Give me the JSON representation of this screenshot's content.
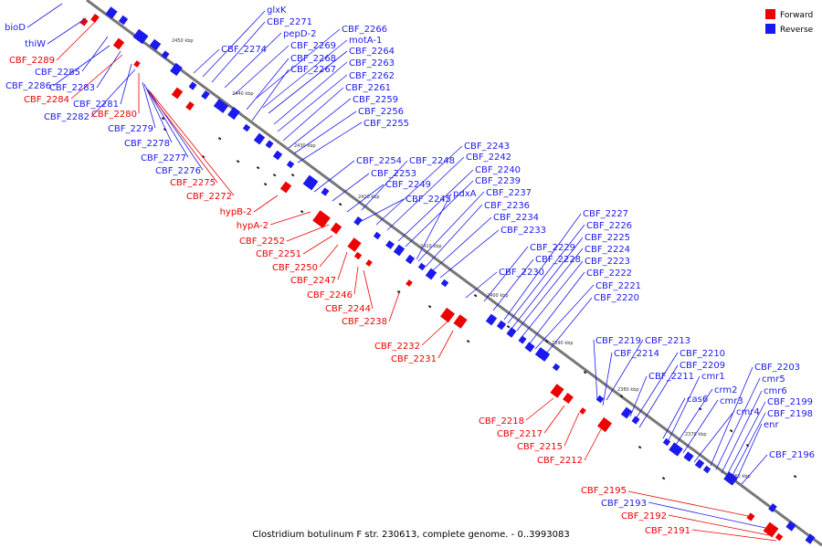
{
  "caption": "Clostridium botulinum F str. 230613, complete genome. - 0..3993083",
  "legend": [
    {
      "label": "Forward",
      "color": "#ee0000"
    },
    {
      "label": "Reverse",
      "color": "#1a1aee"
    }
  ],
  "colors": {
    "forward": "#ee0000",
    "reverse": "#1a1aee",
    "axis": "#777777"
  },
  "ticks": [
    "2450 kbp",
    "2440 kbp",
    "2430 kbp",
    "2420 kbp",
    "2410 kbp",
    "2400 kbp",
    "2390 kbp",
    "2380 kbp",
    "2370 kbp",
    "2360 kbp"
  ],
  "labels": [
    {
      "text": "bioD",
      "s": "r"
    },
    {
      "text": "thiW",
      "s": "r"
    },
    {
      "text": "CBF_2289",
      "s": "f"
    },
    {
      "text": "CBF_2285",
      "s": "r"
    },
    {
      "text": "CBF_2286",
      "s": "r"
    },
    {
      "text": "CBF_2283",
      "s": "r"
    },
    {
      "text": "CBF_2284",
      "s": "f"
    },
    {
      "text": "CBF_2281",
      "s": "r"
    },
    {
      "text": "CBF_2282",
      "s": "r"
    },
    {
      "text": "CBF_2280",
      "s": "f"
    },
    {
      "text": "CBF_2279",
      "s": "r"
    },
    {
      "text": "CBF_2278",
      "s": "r"
    },
    {
      "text": "CBF_2277",
      "s": "r"
    },
    {
      "text": "CBF_2276",
      "s": "r"
    },
    {
      "text": "CBF_2275",
      "s": "f"
    },
    {
      "text": "CBF_2272",
      "s": "f"
    },
    {
      "text": "hypB-2",
      "s": "f"
    },
    {
      "text": "hypA-2",
      "s": "f"
    },
    {
      "text": "CBF_2252",
      "s": "f"
    },
    {
      "text": "CBF_2251",
      "s": "f"
    },
    {
      "text": "CBF_2250",
      "s": "f"
    },
    {
      "text": "CBF_2247",
      "s": "f"
    },
    {
      "text": "CBF_2246",
      "s": "f"
    },
    {
      "text": "CBF_2244",
      "s": "f"
    },
    {
      "text": "CBF_2238",
      "s": "f"
    },
    {
      "text": "CBF_2232",
      "s": "f"
    },
    {
      "text": "CBF_2231",
      "s": "f"
    },
    {
      "text": "CBF_2218",
      "s": "f"
    },
    {
      "text": "CBF_2217",
      "s": "f"
    },
    {
      "text": "CBF_2215",
      "s": "f"
    },
    {
      "text": "CBF_2212",
      "s": "f"
    },
    {
      "text": "CBF_2195",
      "s": "f"
    },
    {
      "text": "CBF_2193",
      "s": "r"
    },
    {
      "text": "CBF_2192",
      "s": "f"
    },
    {
      "text": "CBF_2191",
      "s": "f"
    },
    {
      "text": "glxK",
      "s": "r"
    },
    {
      "text": "CBF_2271",
      "s": "r"
    },
    {
      "text": "CBF_2274",
      "s": "r"
    },
    {
      "text": "pepD-2",
      "s": "r"
    },
    {
      "text": "CBF_2266",
      "s": "r"
    },
    {
      "text": "CBF_2269",
      "s": "r"
    },
    {
      "text": "motA-1",
      "s": "r"
    },
    {
      "text": "CBF_2268",
      "s": "r"
    },
    {
      "text": "CBF_2264",
      "s": "r"
    },
    {
      "text": "CBF_2267",
      "s": "r"
    },
    {
      "text": "CBF_2263",
      "s": "r"
    },
    {
      "text": "CBF_2262",
      "s": "r"
    },
    {
      "text": "CBF_2261",
      "s": "r"
    },
    {
      "text": "CBF_2259",
      "s": "r"
    },
    {
      "text": "CBF_2256",
      "s": "r"
    },
    {
      "text": "CBF_2255",
      "s": "r"
    },
    {
      "text": "CBF_2243",
      "s": "r"
    },
    {
      "text": "CBF_2254",
      "s": "r"
    },
    {
      "text": "CBF_2248",
      "s": "r"
    },
    {
      "text": "CBF_2242",
      "s": "r"
    },
    {
      "text": "CBF_2253",
      "s": "r"
    },
    {
      "text": "CBF_2240",
      "s": "r"
    },
    {
      "text": "CBF_2249",
      "s": "r"
    },
    {
      "text": "CBF_2239",
      "s": "r"
    },
    {
      "text": "pdxA",
      "s": "r"
    },
    {
      "text": "CBF_2237",
      "s": "r"
    },
    {
      "text": "CBF_2245",
      "s": "r"
    },
    {
      "text": "CBF_2236",
      "s": "r"
    },
    {
      "text": "CBF_2234",
      "s": "r"
    },
    {
      "text": "CBF_2233",
      "s": "r"
    },
    {
      "text": "CBF_2227",
      "s": "r"
    },
    {
      "text": "CBF_2226",
      "s": "r"
    },
    {
      "text": "CBF_2225",
      "s": "r"
    },
    {
      "text": "CBF_2229",
      "s": "r"
    },
    {
      "text": "CBF_2224",
      "s": "r"
    },
    {
      "text": "CBF_2228",
      "s": "r"
    },
    {
      "text": "CBF_2223",
      "s": "r"
    },
    {
      "text": "CBF_2230",
      "s": "r"
    },
    {
      "text": "CBF_2222",
      "s": "r"
    },
    {
      "text": "CBF_2221",
      "s": "r"
    },
    {
      "text": "CBF_2220",
      "s": "r"
    },
    {
      "text": "CBF_2219",
      "s": "r"
    },
    {
      "text": "CBF_2213",
      "s": "r"
    },
    {
      "text": "CBF_2214",
      "s": "r"
    },
    {
      "text": "CBF_2210",
      "s": "r"
    },
    {
      "text": "CBF_2209",
      "s": "r"
    },
    {
      "text": "CBF_2211",
      "s": "r"
    },
    {
      "text": "cmr1",
      "s": "r"
    },
    {
      "text": "crm2",
      "s": "r"
    },
    {
      "text": "cas6",
      "s": "r"
    },
    {
      "text": "cmr3",
      "s": "r"
    },
    {
      "text": "cmr4",
      "s": "r"
    },
    {
      "text": "CBF_2203",
      "s": "r"
    },
    {
      "text": "cmr5",
      "s": "r"
    },
    {
      "text": "cmr6",
      "s": "r"
    },
    {
      "text": "CBF_2199",
      "s": "r"
    },
    {
      "text": "CBF_2198",
      "s": "r"
    },
    {
      "text": "enr",
      "s": "r"
    },
    {
      "text": "CBF_2196",
      "s": "r"
    }
  ]
}
